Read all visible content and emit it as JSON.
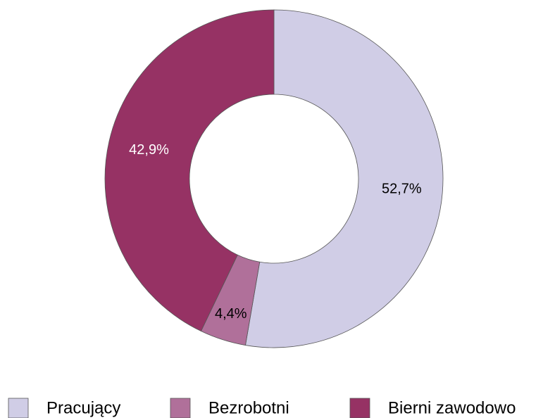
{
  "chart_data": {
    "type": "donut",
    "categories": [
      "Pracujący",
      "Bezrobotni",
      "Bierni zawodowo"
    ],
    "values": [
      52.7,
      4.4,
      42.9
    ],
    "value_labels": [
      "52,7%",
      "4,4%",
      "42,9%"
    ],
    "colors": [
      "#d0cde6",
      "#b0709a",
      "#963264"
    ],
    "value_label_colors": [
      "#000000",
      "#000000",
      "#ffffff"
    ],
    "legend": "bottom"
  }
}
